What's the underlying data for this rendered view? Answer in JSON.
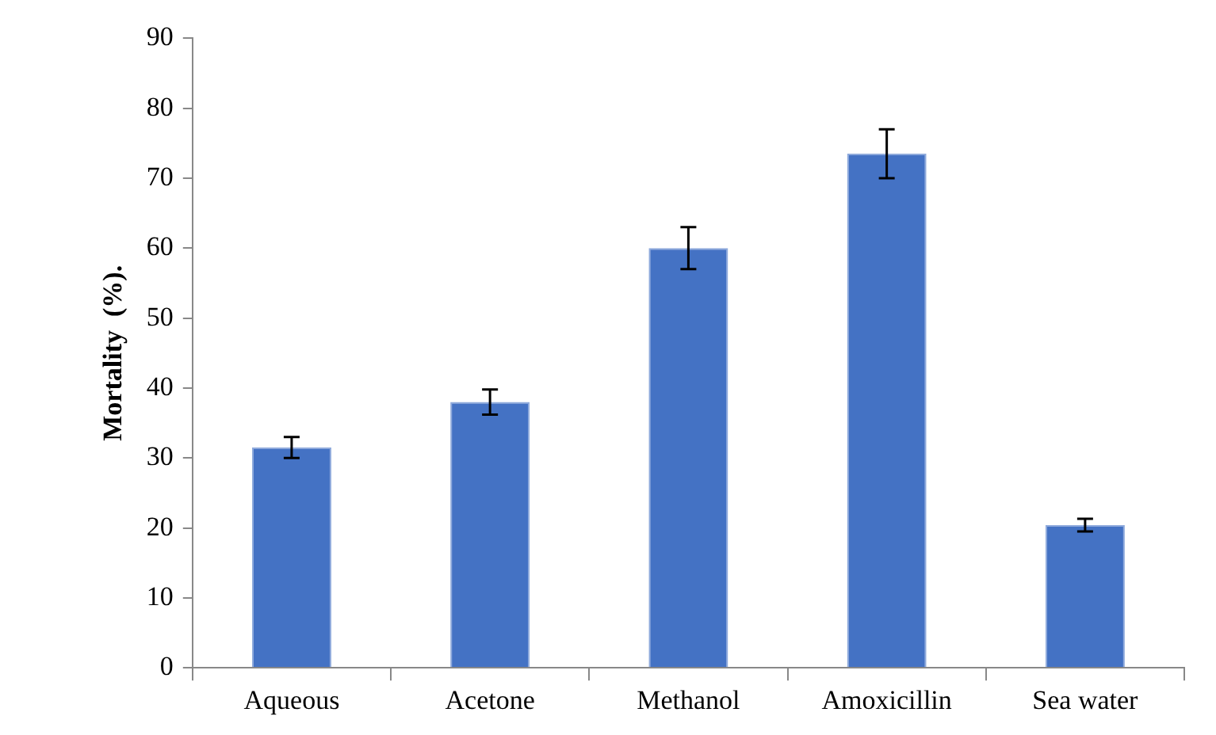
{
  "chart_data": {
    "type": "bar",
    "ylabel": "Mortality  (%).",
    "categories": [
      "Aqueous",
      "Acetone",
      "Methanol",
      "Amoxicillin",
      "Sea water"
    ],
    "values": [
      31.5,
      38,
      60,
      73.5,
      20.4
    ],
    "errors": [
      1.5,
      1.8,
      3,
      3.5,
      0.9
    ],
    "color": "#4472c4",
    "ylim": [
      0,
      90
    ],
    "yticks": [
      0,
      10,
      20,
      30,
      40,
      50,
      60,
      70,
      80,
      90
    ],
    "grid": false,
    "legend": false
  }
}
